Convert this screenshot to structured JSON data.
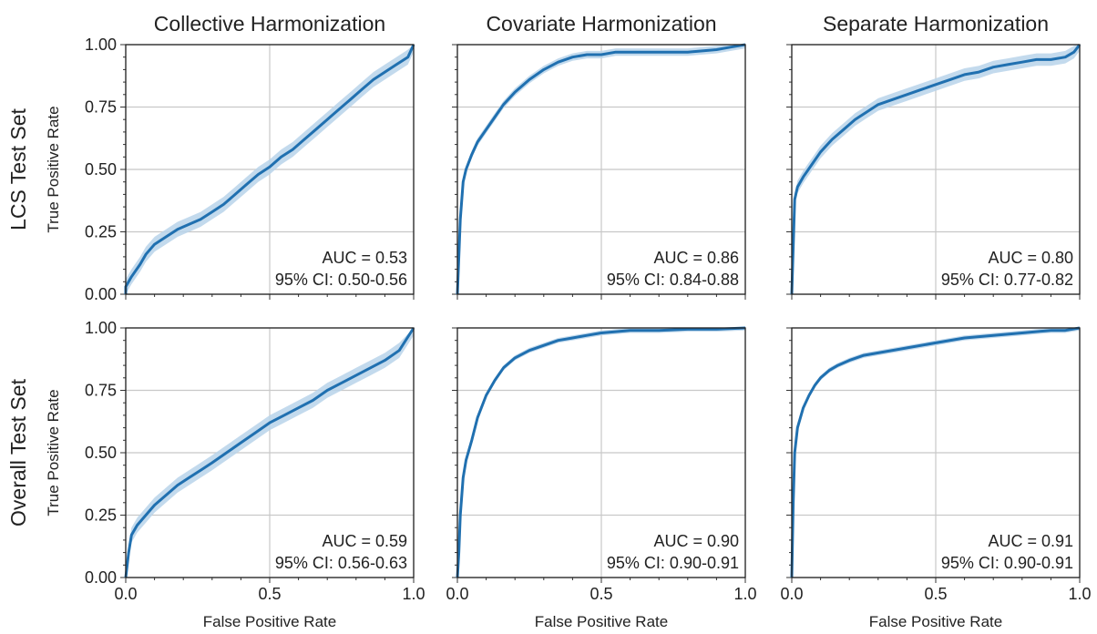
{
  "chart_data": {
    "type": "line",
    "column_titles": [
      "Collective Harmonization",
      "Covariate Harmonization",
      "Separate Harmonization"
    ],
    "row_titles": [
      "LCS Test Set",
      "Overall Test Set"
    ],
    "xlabel": "False Positive Rate",
    "ylabel": "True Positive Rate",
    "xlim": [
      0,
      1
    ],
    "ylim": [
      0,
      1
    ],
    "x_ticks": [
      "0.0",
      "0.5",
      "1.0"
    ],
    "y_ticks": [
      "0.00",
      "0.25",
      "0.50",
      "0.75",
      "1.00"
    ],
    "grid": true,
    "line_color": "#2070b0",
    "band_color": "#b8d3ea",
    "panels": [
      {
        "row": 0,
        "col": 0,
        "auc_text": "AUC = 0.53",
        "ci_text": "95% CI: 0.50-0.56",
        "x": [
          0.0,
          0.0,
          0.02,
          0.05,
          0.07,
          0.1,
          0.14,
          0.18,
          0.22,
          0.26,
          0.3,
          0.34,
          0.38,
          0.42,
          0.46,
          0.5,
          0.54,
          0.58,
          0.62,
          0.66,
          0.7,
          0.74,
          0.78,
          0.82,
          0.86,
          0.9,
          0.94,
          0.98,
          1.0
        ],
        "y": [
          0.0,
          0.03,
          0.07,
          0.12,
          0.16,
          0.2,
          0.23,
          0.26,
          0.28,
          0.3,
          0.33,
          0.36,
          0.4,
          0.44,
          0.48,
          0.51,
          0.55,
          0.58,
          0.62,
          0.66,
          0.7,
          0.74,
          0.78,
          0.82,
          0.86,
          0.89,
          0.92,
          0.95,
          1.0
        ],
        "band": 0.03
      },
      {
        "row": 0,
        "col": 1,
        "auc_text": "AUC = 0.86",
        "ci_text": "95% CI: 0.84-0.88",
        "x": [
          0.0,
          0.01,
          0.02,
          0.03,
          0.05,
          0.07,
          0.1,
          0.13,
          0.16,
          0.2,
          0.25,
          0.3,
          0.35,
          0.4,
          0.45,
          0.5,
          0.55,
          0.6,
          0.7,
          0.8,
          0.9,
          0.95,
          1.0
        ],
        "y": [
          0.0,
          0.3,
          0.45,
          0.5,
          0.56,
          0.61,
          0.66,
          0.71,
          0.76,
          0.81,
          0.86,
          0.9,
          0.93,
          0.95,
          0.96,
          0.96,
          0.97,
          0.97,
          0.97,
          0.97,
          0.98,
          0.99,
          1.0
        ],
        "band": 0.015
      },
      {
        "row": 0,
        "col": 2,
        "auc_text": "AUC = 0.80",
        "ci_text": "95% CI: 0.77-0.82",
        "x": [
          0.0,
          0.01,
          0.02,
          0.04,
          0.07,
          0.1,
          0.14,
          0.18,
          0.22,
          0.26,
          0.3,
          0.35,
          0.4,
          0.45,
          0.5,
          0.55,
          0.6,
          0.65,
          0.7,
          0.75,
          0.8,
          0.85,
          0.9,
          0.95,
          0.98,
          1.0
        ],
        "y": [
          0.0,
          0.38,
          0.43,
          0.47,
          0.52,
          0.57,
          0.62,
          0.66,
          0.7,
          0.73,
          0.76,
          0.78,
          0.8,
          0.82,
          0.84,
          0.86,
          0.88,
          0.89,
          0.91,
          0.92,
          0.93,
          0.94,
          0.94,
          0.95,
          0.97,
          1.0
        ],
        "band": 0.025
      },
      {
        "row": 1,
        "col": 0,
        "auc_text": "AUC = 0.59",
        "ci_text": "95% CI: 0.56-0.63",
        "x": [
          0.0,
          0.01,
          0.02,
          0.04,
          0.07,
          0.1,
          0.14,
          0.18,
          0.22,
          0.26,
          0.3,
          0.35,
          0.4,
          0.45,
          0.5,
          0.55,
          0.6,
          0.65,
          0.7,
          0.75,
          0.8,
          0.85,
          0.9,
          0.95,
          1.0
        ],
        "y": [
          0.0,
          0.1,
          0.17,
          0.21,
          0.25,
          0.29,
          0.33,
          0.37,
          0.4,
          0.43,
          0.46,
          0.5,
          0.54,
          0.58,
          0.62,
          0.65,
          0.68,
          0.71,
          0.75,
          0.78,
          0.81,
          0.84,
          0.87,
          0.91,
          1.0
        ],
        "band": 0.03
      },
      {
        "row": 1,
        "col": 1,
        "auc_text": "AUC = 0.90",
        "ci_text": "95% CI: 0.90-0.91",
        "x": [
          0.0,
          0.005,
          0.01,
          0.02,
          0.03,
          0.05,
          0.07,
          0.1,
          0.13,
          0.16,
          0.2,
          0.25,
          0.3,
          0.35,
          0.4,
          0.45,
          0.5,
          0.6,
          0.7,
          0.8,
          0.9,
          1.0
        ],
        "y": [
          0.0,
          0.1,
          0.25,
          0.4,
          0.47,
          0.55,
          0.64,
          0.73,
          0.79,
          0.84,
          0.88,
          0.91,
          0.93,
          0.95,
          0.96,
          0.97,
          0.98,
          0.99,
          0.99,
          0.995,
          0.995,
          1.0
        ],
        "band": 0.01
      },
      {
        "row": 1,
        "col": 2,
        "auc_text": "AUC = 0.91",
        "ci_text": "95% CI: 0.90-0.91",
        "x": [
          0.0,
          0.005,
          0.01,
          0.02,
          0.04,
          0.06,
          0.08,
          0.1,
          0.13,
          0.16,
          0.2,
          0.25,
          0.3,
          0.4,
          0.5,
          0.6,
          0.7,
          0.8,
          0.9,
          0.95,
          1.0
        ],
        "y": [
          0.0,
          0.3,
          0.5,
          0.6,
          0.68,
          0.73,
          0.77,
          0.8,
          0.83,
          0.85,
          0.87,
          0.89,
          0.9,
          0.92,
          0.94,
          0.96,
          0.97,
          0.98,
          0.99,
          0.99,
          1.0
        ],
        "band": 0.01
      }
    ]
  }
}
